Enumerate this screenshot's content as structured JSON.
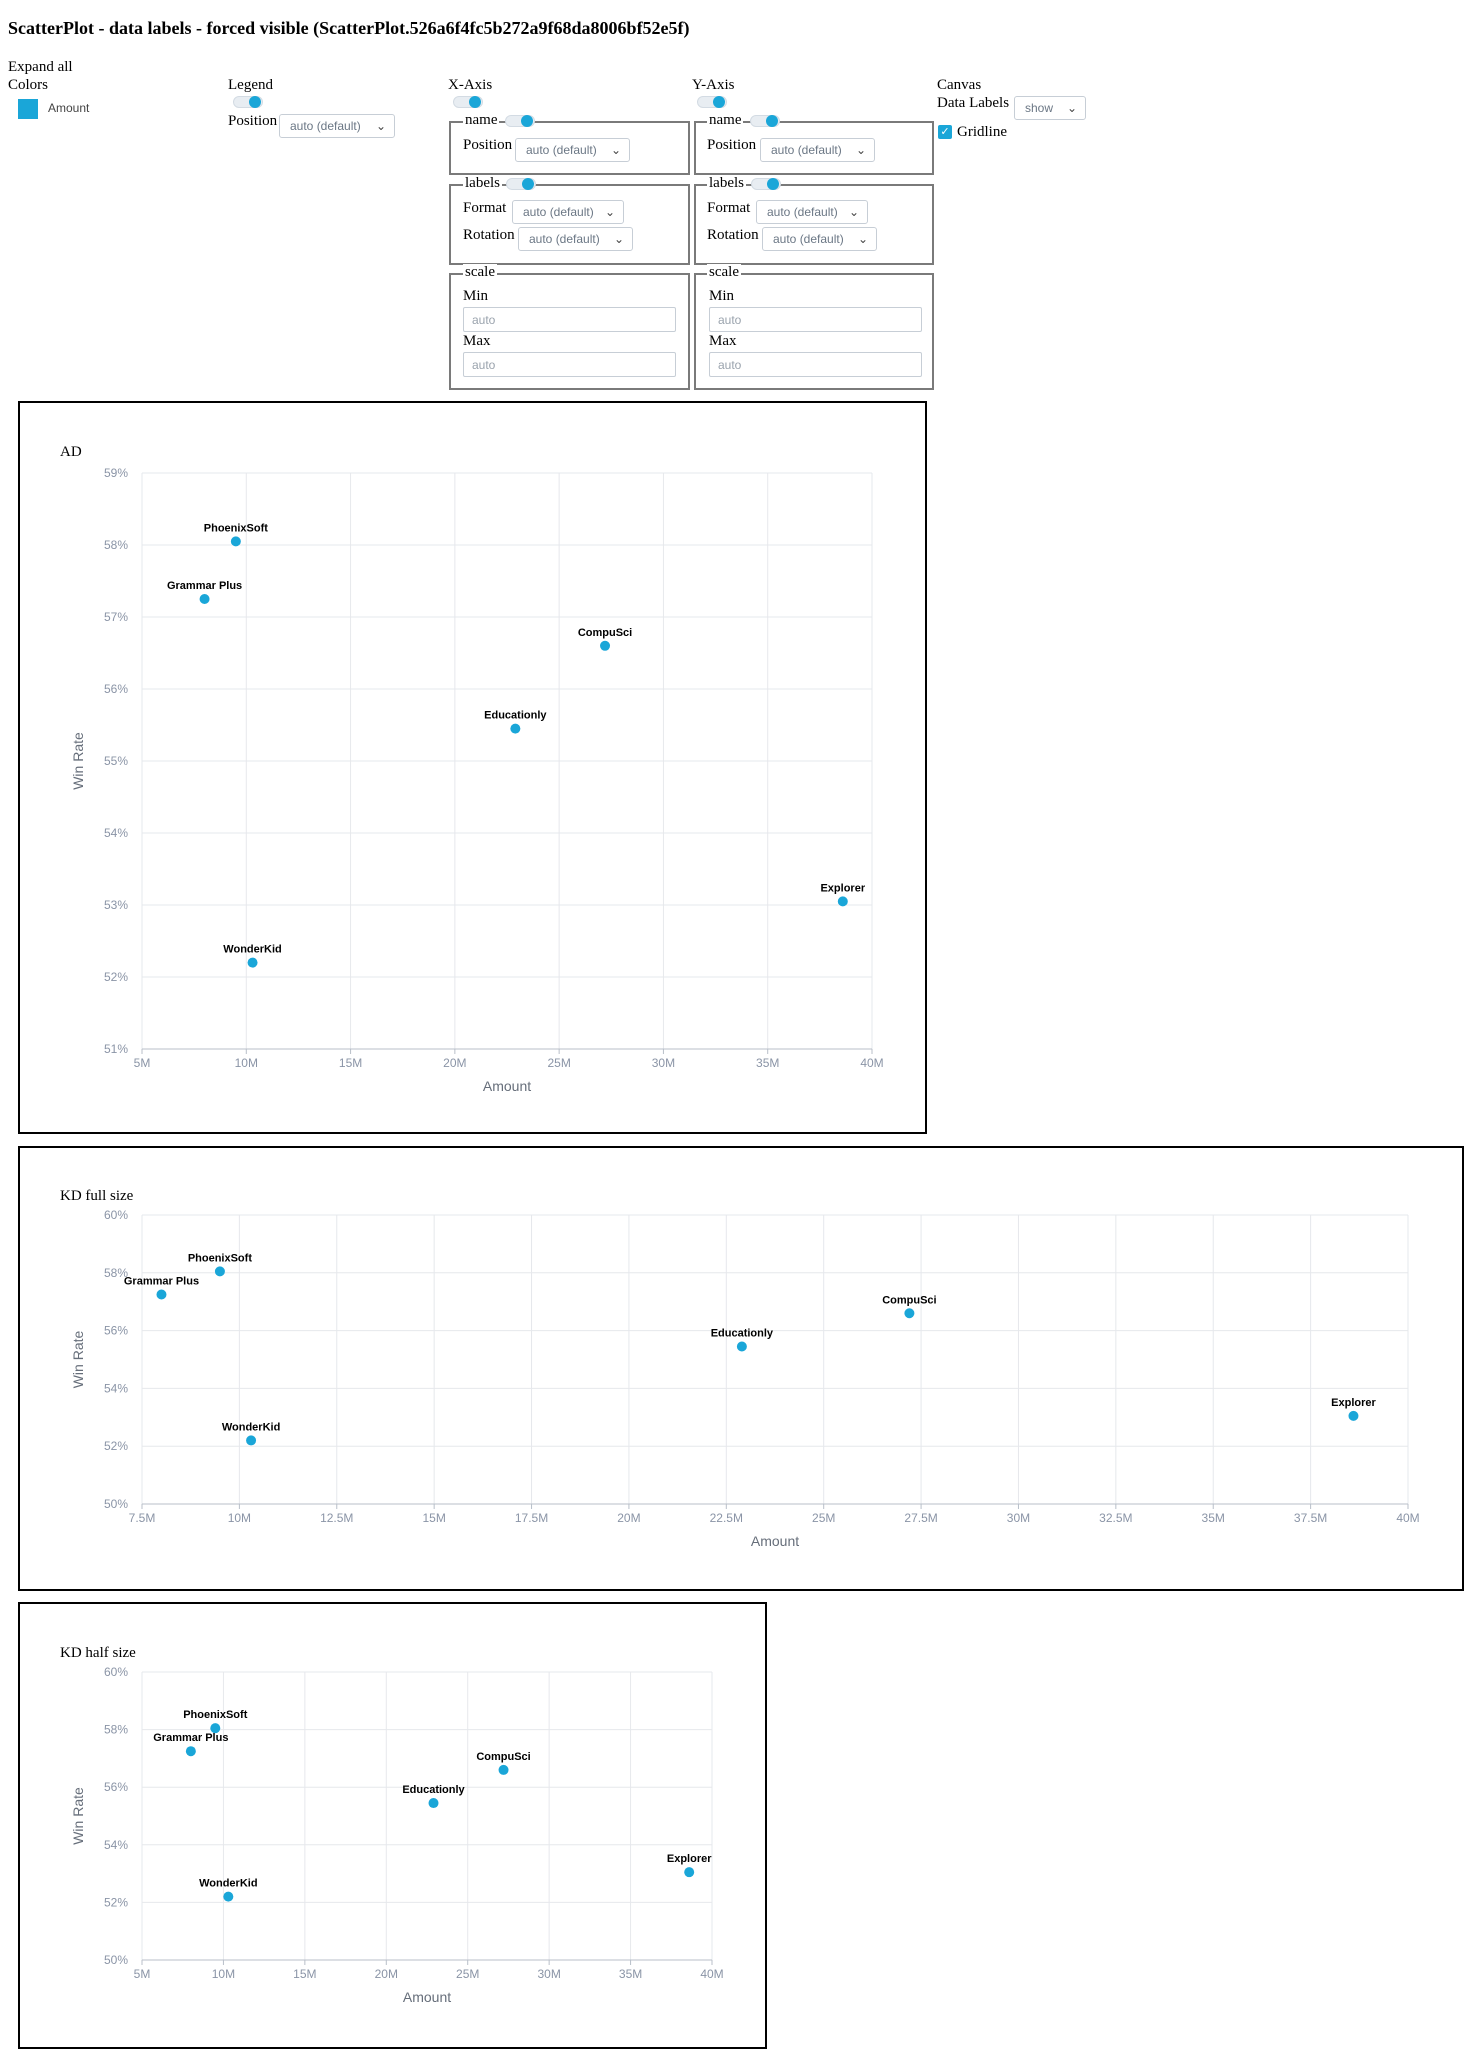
{
  "page": {
    "title": "ScatterPlot - data labels - forced visible (ScatterPlot.526a6f4fc5b272a9f68da8006bf52e5f)"
  },
  "controls": {
    "expand_all": "Expand all",
    "colors_label": "Colors",
    "legend_item": "Amount",
    "legend_heading": "Legend",
    "legend_position_label": "Position",
    "legend_position_value": "auto (default)",
    "xaxis": {
      "heading": "X-Axis",
      "name_legend": "name",
      "position_label": "Position",
      "position_value": "auto (default)",
      "labels_legend": "labels",
      "format_label": "Format",
      "format_value": "auto (default)",
      "rotation_label": "Rotation",
      "rotation_value": "auto (default)",
      "scale_legend": "scale",
      "min_label": "Min",
      "min_placeholder": "auto",
      "max_label": "Max",
      "max_placeholder": "auto"
    },
    "yaxis": {
      "heading": "Y-Axis",
      "name_legend": "name",
      "position_label": "Position",
      "position_value": "auto (default)",
      "labels_legend": "labels",
      "format_label": "Format",
      "format_value": "auto (default)",
      "rotation_label": "Rotation",
      "rotation_value": "auto (default)",
      "scale_legend": "scale",
      "min_label": "Min",
      "min_placeholder": "auto",
      "max_label": "Max",
      "max_placeholder": "auto"
    },
    "canvas": {
      "heading": "Canvas",
      "data_labels_label": "Data Labels",
      "data_labels_value": "show",
      "gridline_label": "Gridline",
      "gridline_checked": true
    }
  },
  "colors": {
    "point": "#1aa6d8",
    "grid": "#e6e8ec",
    "axis_text": "#8a94a6"
  },
  "chart_data": [
    {
      "type": "scatter",
      "title": "AD",
      "xlabel": "Amount",
      "ylabel": "Win Rate",
      "xlim": [
        5,
        40
      ],
      "ylim": [
        51,
        59
      ],
      "x_ticks": [
        5,
        10,
        15,
        20,
        25,
        30,
        35,
        40
      ],
      "x_tick_labels": [
        "5M",
        "10M",
        "15M",
        "20M",
        "25M",
        "30M",
        "35M",
        "40M"
      ],
      "y_ticks": [
        51,
        52,
        53,
        54,
        55,
        56,
        57,
        58,
        59
      ],
      "y_tick_labels": [
        "51%",
        "52%",
        "53%",
        "54%",
        "55%",
        "56%",
        "57%",
        "58%",
        "59%"
      ],
      "grid": true,
      "points": [
        {
          "label": "PhoenixSoft",
          "x": 9.5,
          "y": 58.05
        },
        {
          "label": "Grammar Plus",
          "x": 8.0,
          "y": 57.25
        },
        {
          "label": "CompuSci",
          "x": 27.2,
          "y": 56.6
        },
        {
          "label": "Educationly",
          "x": 22.9,
          "y": 55.45
        },
        {
          "label": "Explorer",
          "x": 38.6,
          "y": 53.05
        },
        {
          "label": "WonderKid",
          "x": 10.3,
          "y": 52.2
        }
      ]
    },
    {
      "type": "scatter",
      "title": "KD full size",
      "xlabel": "Amount",
      "ylabel": "Win Rate",
      "xlim": [
        7.5,
        40
      ],
      "ylim": [
        50,
        60
      ],
      "x_ticks": [
        7.5,
        10,
        12.5,
        15,
        17.5,
        20,
        22.5,
        25,
        27.5,
        30,
        32.5,
        35,
        37.5,
        40
      ],
      "x_tick_labels": [
        "7.5M",
        "10M",
        "12.5M",
        "15M",
        "17.5M",
        "20M",
        "22.5M",
        "25M",
        "27.5M",
        "30M",
        "32.5M",
        "35M",
        "37.5M",
        "40M"
      ],
      "y_ticks": [
        50,
        52,
        54,
        56,
        58,
        60
      ],
      "y_tick_labels": [
        "50%",
        "52%",
        "54%",
        "56%",
        "58%",
        "60%"
      ],
      "grid": true,
      "points": [
        {
          "label": "PhoenixSoft",
          "x": 9.5,
          "y": 58.05
        },
        {
          "label": "Grammar Plus",
          "x": 8.0,
          "y": 57.25
        },
        {
          "label": "CompuSci",
          "x": 27.2,
          "y": 56.6
        },
        {
          "label": "Educationly",
          "x": 22.9,
          "y": 55.45
        },
        {
          "label": "Explorer",
          "x": 38.6,
          "y": 53.05
        },
        {
          "label": "WonderKid",
          "x": 10.3,
          "y": 52.2
        }
      ]
    },
    {
      "type": "scatter",
      "title": "KD half size",
      "xlabel": "Amount",
      "ylabel": "Win Rate",
      "xlim": [
        5,
        40
      ],
      "ylim": [
        50,
        60
      ],
      "x_ticks": [
        5,
        10,
        15,
        20,
        25,
        30,
        35,
        40
      ],
      "x_tick_labels": [
        "5M",
        "10M",
        "15M",
        "20M",
        "25M",
        "30M",
        "35M",
        "40M"
      ],
      "y_ticks": [
        50,
        52,
        54,
        56,
        58,
        60
      ],
      "y_tick_labels": [
        "50%",
        "52%",
        "54%",
        "56%",
        "58%",
        "60%"
      ],
      "grid": true,
      "points": [
        {
          "label": "PhoenixSoft",
          "x": 9.5,
          "y": 58.05
        },
        {
          "label": "Grammar Plus",
          "x": 8.0,
          "y": 57.25
        },
        {
          "label": "CompuSci",
          "x": 27.2,
          "y": 56.6
        },
        {
          "label": "Educationly",
          "x": 22.9,
          "y": 55.45
        },
        {
          "label": "Explorer",
          "x": 38.6,
          "y": 53.05
        },
        {
          "label": "WonderKid",
          "x": 10.3,
          "y": 52.2
        }
      ]
    }
  ]
}
